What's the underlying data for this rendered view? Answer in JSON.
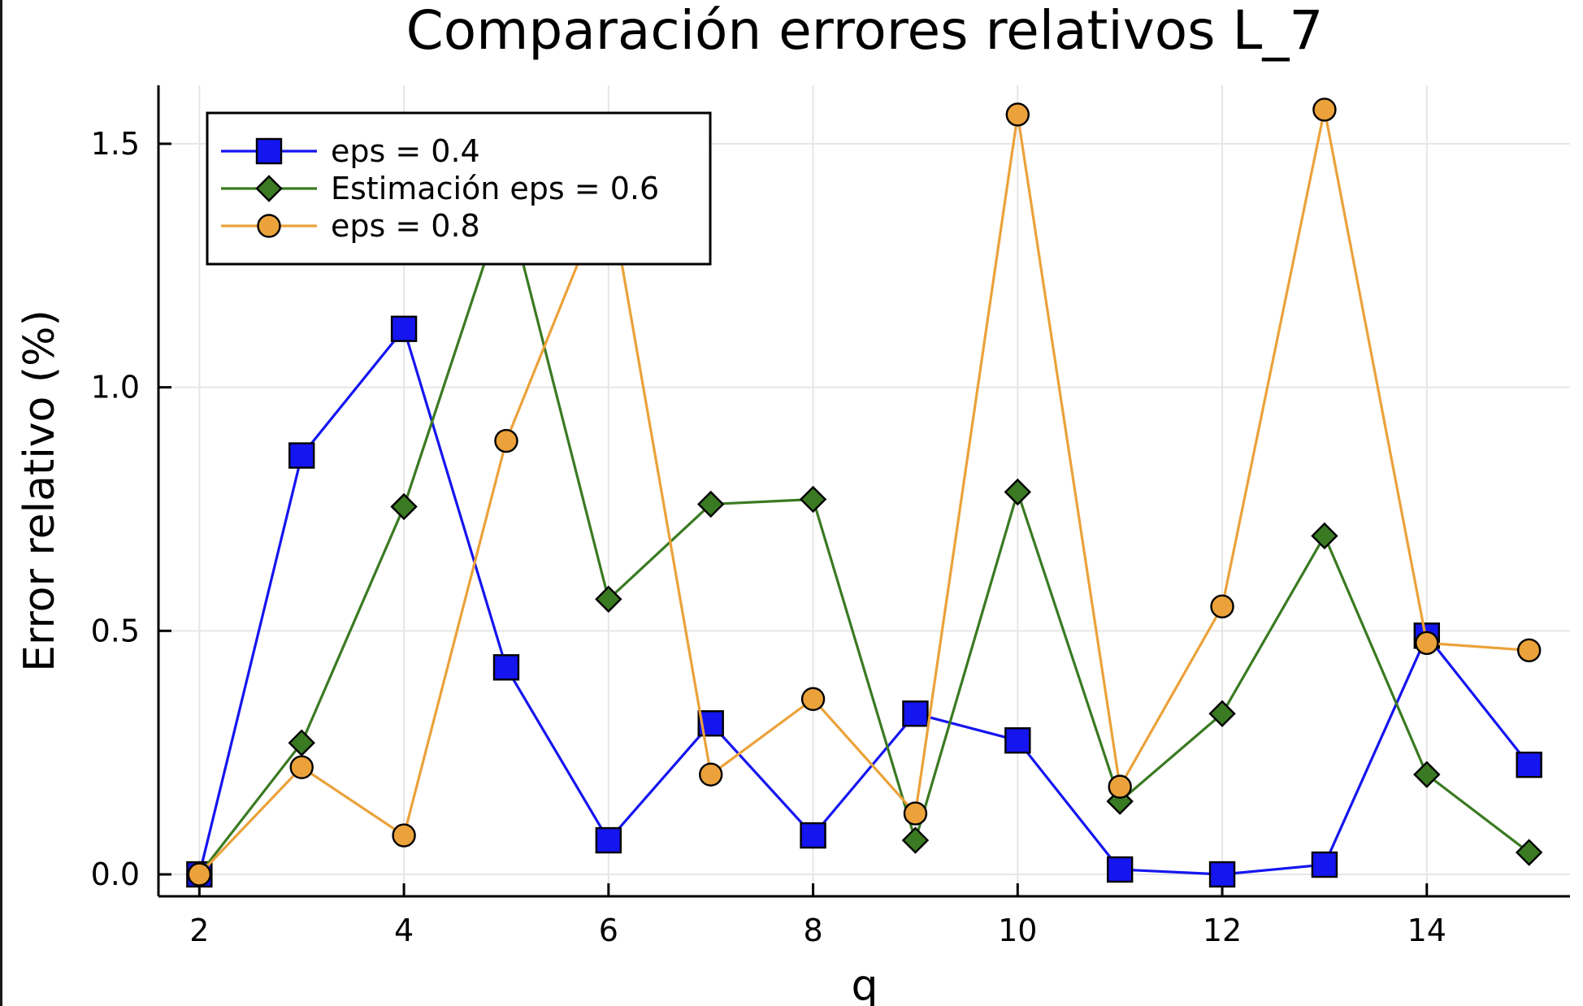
{
  "chart_data": {
    "type": "line",
    "title": "Comparación errores relativos L_7",
    "xlabel": "q",
    "ylabel": "Error relativo (%)",
    "xlim": [
      1.6,
      15.4
    ],
    "ylim": [
      -0.045,
      1.62
    ],
    "xticks": [
      2,
      4,
      6,
      8,
      10,
      12,
      14
    ],
    "xtick_labels": [
      "2",
      "4",
      "6",
      "8",
      "10",
      "12",
      "14"
    ],
    "yticks": [
      0.0,
      0.5,
      1.0,
      1.5
    ],
    "ytick_labels": [
      "0.0",
      "0.5",
      "1.0",
      "1.5"
    ],
    "grid": true,
    "legend_position": "top-left",
    "x": [
      2,
      3,
      4,
      5,
      6,
      7,
      8,
      9,
      10,
      11,
      12,
      13,
      14,
      15
    ],
    "series": [
      {
        "name": "eps = 0.4",
        "color": "#1515ef",
        "marker": "square",
        "values": [
          0.0,
          0.86,
          1.12,
          0.425,
          0.07,
          0.31,
          0.08,
          0.33,
          0.275,
          0.01,
          0.0,
          0.02,
          0.49,
          0.225
        ]
      },
      {
        "name": "Estimación eps = 0.6",
        "color": "#3a7a22",
        "marker": "diamond",
        "values": [
          0.0,
          0.27,
          0.755,
          1.39,
          0.565,
          0.76,
          0.77,
          0.07,
          0.785,
          0.15,
          0.33,
          0.695,
          0.205,
          0.045
        ]
      },
      {
        "name": "eps = 0.8",
        "color": "#eba23a",
        "marker": "circle",
        "values": [
          0.0,
          0.22,
          0.08,
          0.89,
          1.41,
          0.205,
          0.36,
          0.125,
          1.56,
          0.18,
          0.55,
          1.57,
          0.475,
          0.46
        ]
      }
    ]
  }
}
